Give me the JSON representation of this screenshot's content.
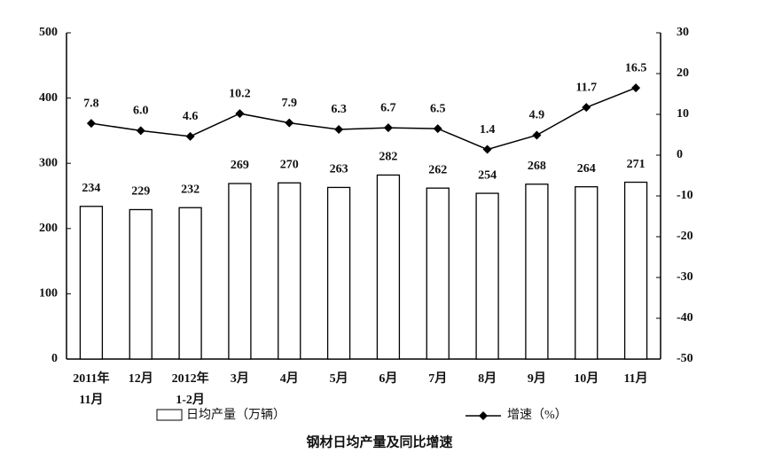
{
  "chart_data": {
    "type": "bar-line",
    "title": "钢材日均产量及同比增速",
    "categories": [
      [
        "2011年",
        "11月"
      ],
      [
        "12月"
      ],
      [
        "2012年",
        "1-2月"
      ],
      [
        "3月"
      ],
      [
        "4月"
      ],
      [
        "5月"
      ],
      [
        "6月"
      ],
      [
        "7月"
      ],
      [
        "8月"
      ],
      [
        "9月"
      ],
      [
        "10月"
      ],
      [
        "11月"
      ]
    ],
    "series": [
      {
        "name": "日均产量（万辆）",
        "type": "bar",
        "color": "#ffffff",
        "values": [
          234,
          229,
          232,
          269,
          270,
          263,
          282,
          262,
          254,
          268,
          264,
          271
        ]
      },
      {
        "name": "增速（%）",
        "type": "line",
        "axis": "y2",
        "color": "#000000",
        "values": [
          7.8,
          6.0,
          4.6,
          10.2,
          7.9,
          6.3,
          6.7,
          6.5,
          1.4,
          4.9,
          11.7,
          16.5
        ],
        "value_labels": [
          "7.8",
          "6.0",
          "4.6",
          "10.2",
          "7.9",
          "6.3",
          "6.7",
          "6.5",
          "1.4",
          "4.9",
          "11.7",
          "16.5"
        ]
      }
    ],
    "ylim": [
      0,
      500
    ],
    "yticks": [
      0,
      100,
      200,
      300,
      400,
      500
    ],
    "y2lim": [
      -50,
      30
    ],
    "y2ticks": [
      -50,
      -40,
      -30,
      -20,
      -10,
      0,
      10,
      20,
      30
    ]
  }
}
